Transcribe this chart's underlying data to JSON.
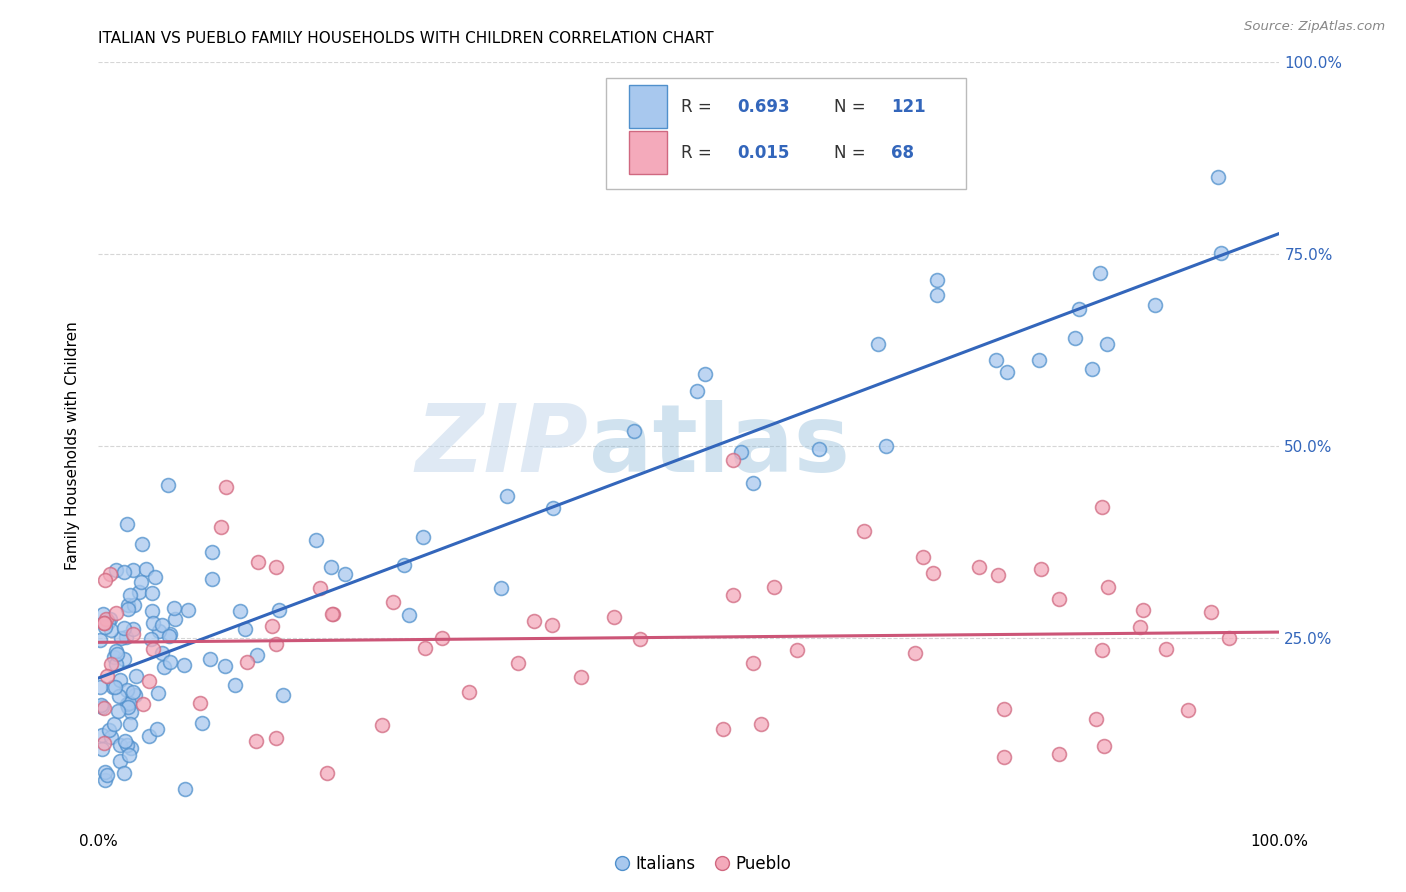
{
  "title": "ITALIAN VS PUEBLO FAMILY HOUSEHOLDS WITH CHILDREN CORRELATION CHART",
  "source": "Source: ZipAtlas.com",
  "ylabel": "Family Households with Children",
  "watermark_zip": "ZIP",
  "watermark_atlas": "atlas",
  "italian_R": 0.693,
  "italian_N": 121,
  "pueblo_R": 0.015,
  "pueblo_N": 68,
  "italian_face_color": "#A8C8EE",
  "italian_edge_color": "#5090CC",
  "pueblo_face_color": "#F4AABB",
  "pueblo_edge_color": "#D06880",
  "italian_line_color": "#3366BB",
  "pueblo_line_color": "#CC5577",
  "background_color": "#FFFFFF",
  "grid_color": "#CCCCCC",
  "ytick_labels": [
    "25.0%",
    "50.0%",
    "75.0%",
    "100.0%"
  ],
  "ytick_positions": [
    25,
    50,
    75,
    100
  ],
  "right_axis_color": "#3366BB",
  "xlim": [
    0,
    100
  ],
  "ylim": [
    0,
    100
  ],
  "title_fontsize": 11,
  "legend_color": "#3366BB",
  "legend_text_color": "#333333"
}
